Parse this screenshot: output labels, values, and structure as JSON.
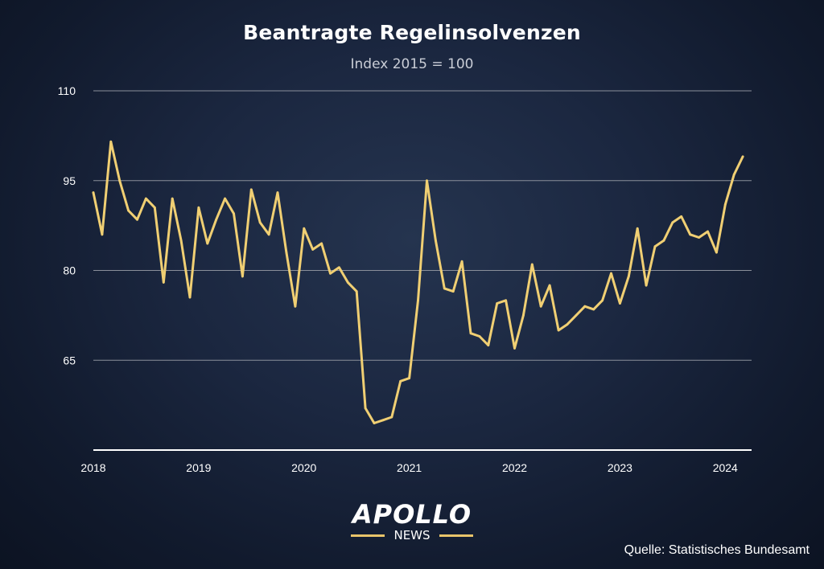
{
  "colors": {
    "line": "#f0cf73",
    "grid": "#8a8f9a",
    "axis": "#ffffff",
    "text": "#ffffff",
    "accent": "#e9c46a"
  },
  "chart_data": {
    "type": "line",
    "title": "Beantragte Regelinsolvenzen",
    "subtitle": "Index 2015 = 100",
    "xlabel": "",
    "ylabel": "",
    "ylim": [
      50,
      110
    ],
    "yticks": [
      65,
      80,
      95,
      110
    ],
    "ytick_labels": [
      "65",
      "80",
      "95",
      "110"
    ],
    "x_range": [
      2018.0,
      2024.25
    ],
    "xticks": [
      2018,
      2019,
      2020,
      2021,
      2022,
      2023,
      2024
    ],
    "xtick_labels": [
      "2018",
      "2019",
      "2020",
      "2021",
      "2022",
      "2023",
      "2024"
    ],
    "grid": true,
    "series": [
      {
        "name": "Beantragte Regelinsolvenzen",
        "start": "2018-01",
        "frequency": "monthly",
        "values": [
          93,
          86,
          101.5,
          95,
          90,
          88.5,
          92,
          90.5,
          78,
          92,
          85,
          75.5,
          90.5,
          84.5,
          88.5,
          92,
          89.5,
          79,
          93.5,
          88,
          86,
          93,
          83,
          74,
          87,
          83.5,
          84.5,
          79.5,
          80.5,
          78,
          76.5,
          57,
          54.5,
          55,
          55.5,
          61.5,
          62,
          75,
          95,
          85,
          77,
          76.5,
          81.5,
          69.5,
          69,
          67.5,
          74.5,
          75,
          67,
          72.5,
          81,
          74,
          77.5,
          70,
          71,
          72.5,
          74,
          73.5,
          75,
          79.5,
          74.5,
          79,
          87,
          77.5,
          84,
          85,
          88,
          89,
          86,
          85.5,
          86.5,
          83,
          91,
          96,
          99
        ]
      }
    ]
  },
  "logo": {
    "name": "APOLLO",
    "sub": "NEWS"
  },
  "source": "Quelle: Statistisches Bundesamt"
}
